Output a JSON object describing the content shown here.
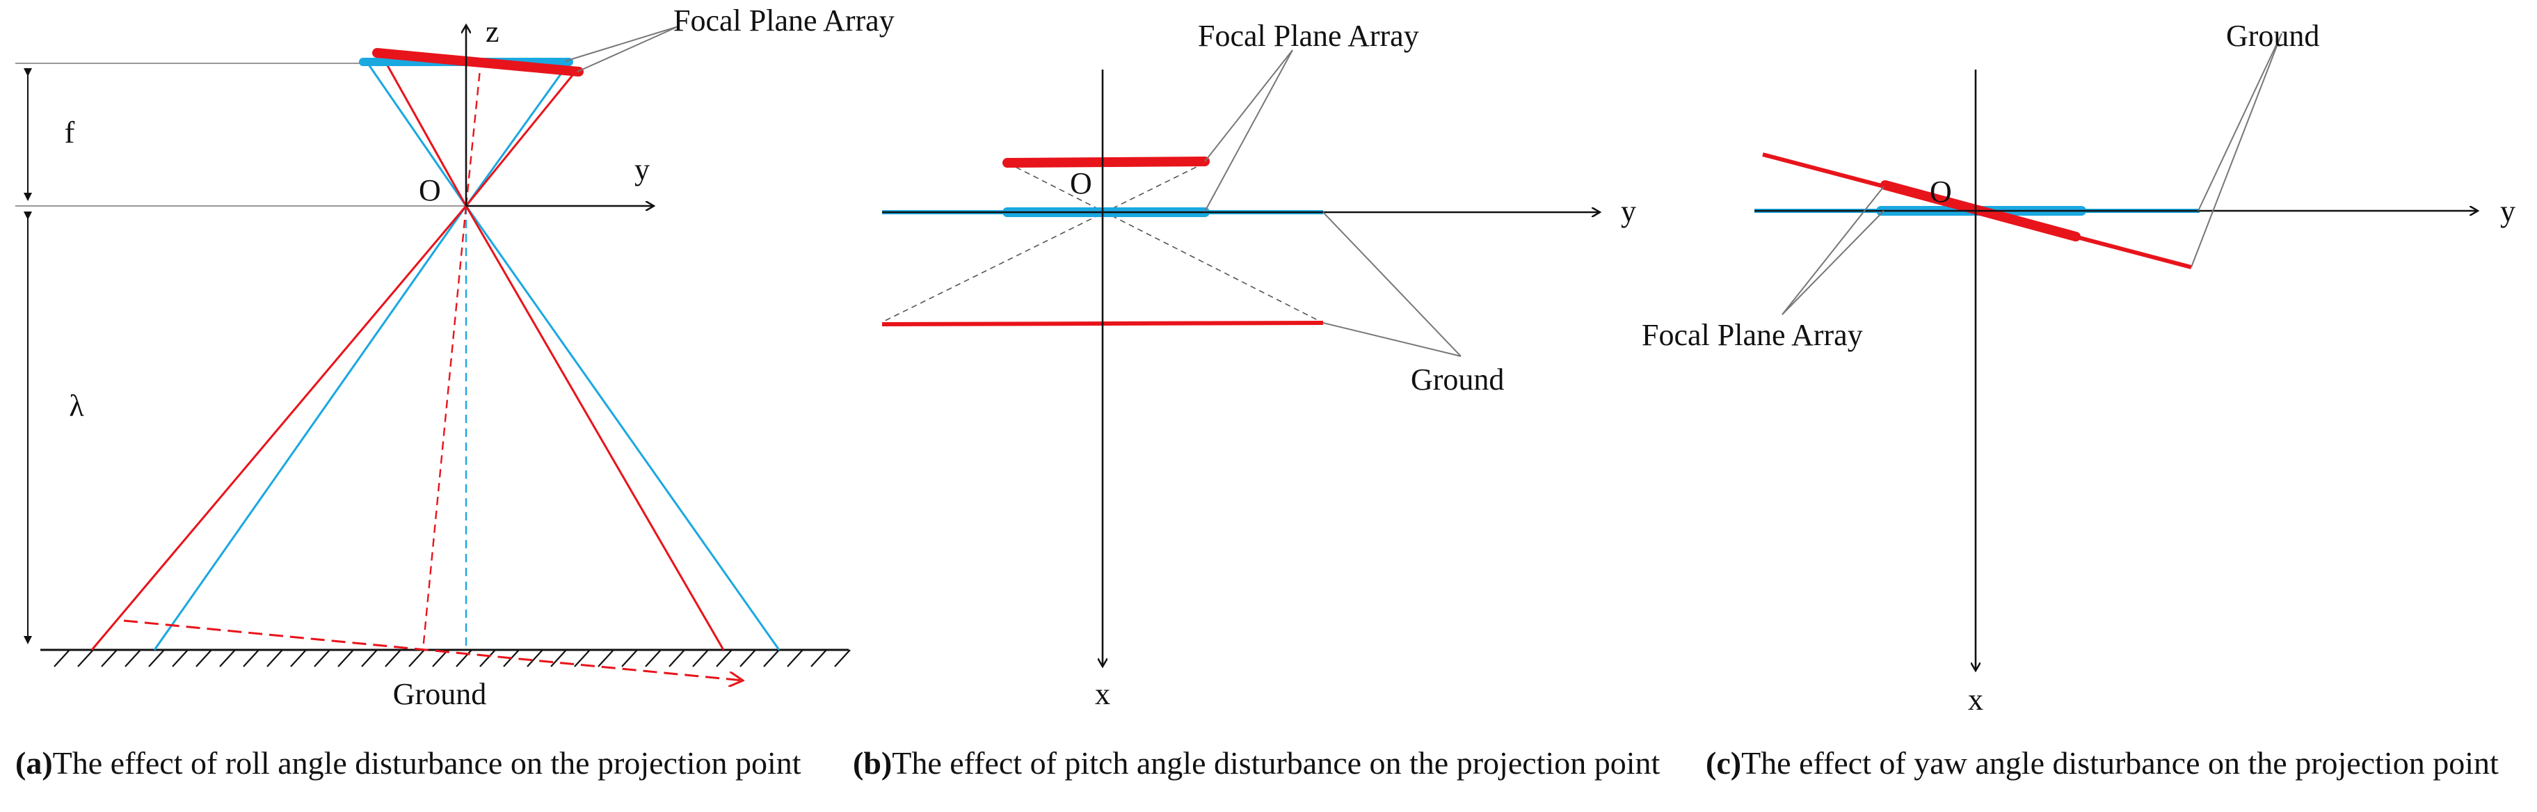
{
  "colors": {
    "red": "#e8141b",
    "blue": "#1aa8e0",
    "black": "#111111",
    "gray": "#777777"
  },
  "panel_a": {
    "focal_plane_label": "Focal Plane Array",
    "z_label": "z",
    "y_label": "y",
    "origin_label": "O",
    "f_label": "f",
    "lambda_label": "λ",
    "ground_label": "Ground",
    "caption_tag": "(a)",
    "caption_text": "The effect of roll angle disturbance on the projection point"
  },
  "panel_b": {
    "focal_plane_label": "Focal Plane Array",
    "origin_label": "O",
    "y_label": "y",
    "x_label": "x",
    "ground_label": "Ground",
    "caption_tag": "(b)",
    "caption_text": "The effect of pitch angle disturbance on the projection point"
  },
  "panel_c": {
    "ground_label": "Ground",
    "origin_label": "O",
    "y_label": "y",
    "x_label": "x",
    "focal_plane_label": "Focal Plane Array",
    "caption_tag": "(c)",
    "caption_text": "The effect of yaw angle disturbance on the projection point"
  }
}
